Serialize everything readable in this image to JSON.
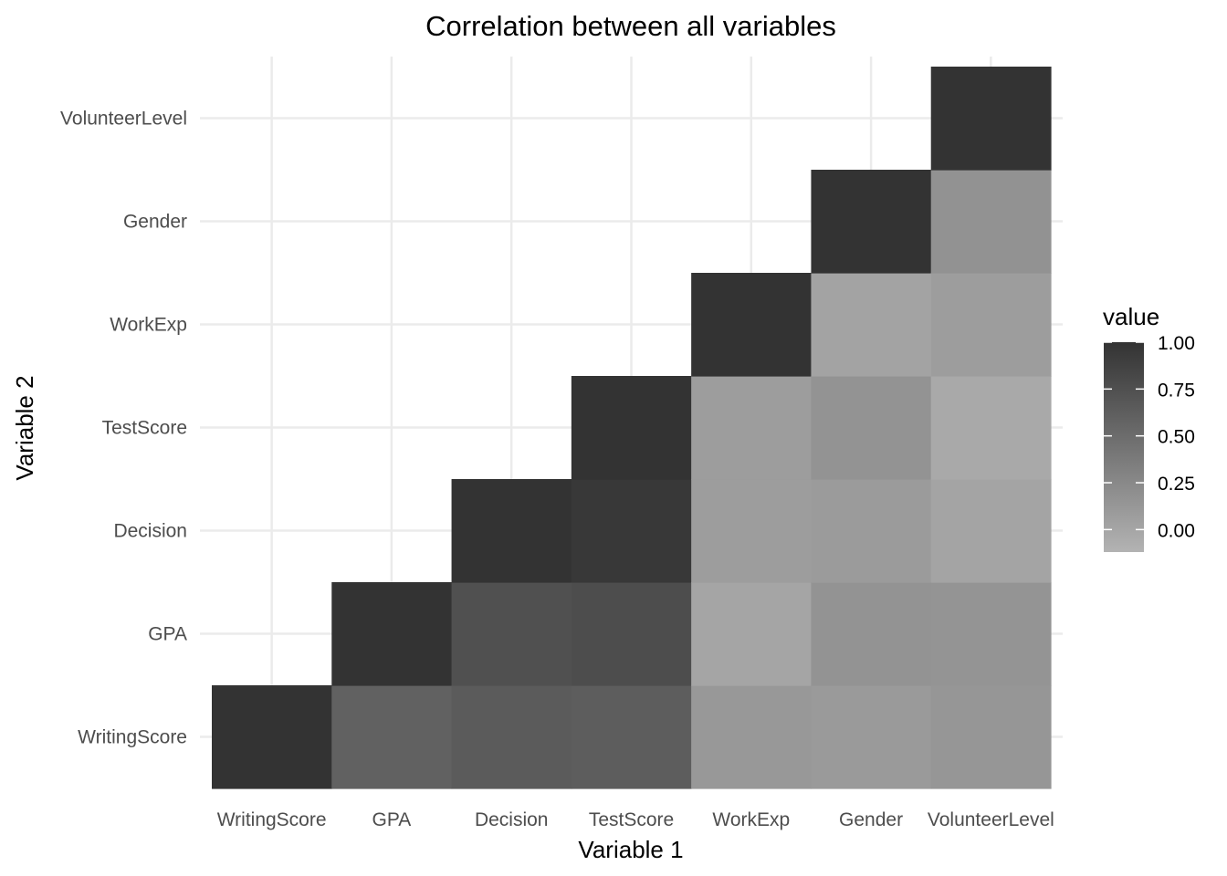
{
  "chart_data": {
    "type": "heatmap",
    "title": "Correlation between all variables",
    "xlabel": "Variable 1",
    "ylabel": "Variable 2",
    "x_categories": [
      "WritingScore",
      "GPA",
      "Decision",
      "TestScore",
      "WorkExp",
      "Gender",
      "VolunteerLevel"
    ],
    "y_categories": [
      "WritingScore",
      "GPA",
      "Decision",
      "TestScore",
      "WorkExp",
      "Gender",
      "VolunteerLevel"
    ],
    "cells": [
      {
        "x": "WritingScore",
        "y": "WritingScore",
        "value": 1.0
      },
      {
        "x": "GPA",
        "y": "WritingScore",
        "value": 0.6
      },
      {
        "x": "GPA",
        "y": "GPA",
        "value": 1.0
      },
      {
        "x": "Decision",
        "y": "WritingScore",
        "value": 0.65
      },
      {
        "x": "Decision",
        "y": "GPA",
        "value": 0.75
      },
      {
        "x": "Decision",
        "y": "Decision",
        "value": 1.0
      },
      {
        "x": "TestScore",
        "y": "WritingScore",
        "value": 0.63
      },
      {
        "x": "TestScore",
        "y": "GPA",
        "value": 0.77
      },
      {
        "x": "TestScore",
        "y": "Decision",
        "value": 0.96
      },
      {
        "x": "TestScore",
        "y": "TestScore",
        "value": 1.0
      },
      {
        "x": "WorkExp",
        "y": "WritingScore",
        "value": 0.12
      },
      {
        "x": "WorkExp",
        "y": "GPA",
        "value": 0.0
      },
      {
        "x": "WorkExp",
        "y": "Decision",
        "value": 0.07
      },
      {
        "x": "WorkExp",
        "y": "TestScore",
        "value": 0.07
      },
      {
        "x": "WorkExp",
        "y": "WorkExp",
        "value": 1.0
      },
      {
        "x": "Gender",
        "y": "WritingScore",
        "value": 0.1
      },
      {
        "x": "Gender",
        "y": "GPA",
        "value": 0.16
      },
      {
        "x": "Gender",
        "y": "Decision",
        "value": 0.09
      },
      {
        "x": "Gender",
        "y": "TestScore",
        "value": 0.16
      },
      {
        "x": "Gender",
        "y": "WorkExp",
        "value": 0.02
      },
      {
        "x": "Gender",
        "y": "Gender",
        "value": 1.0
      },
      {
        "x": "VolunteerLevel",
        "y": "WritingScore",
        "value": 0.13
      },
      {
        "x": "VolunteerLevel",
        "y": "GPA",
        "value": 0.15
      },
      {
        "x": "VolunteerLevel",
        "y": "Decision",
        "value": 0.01
      },
      {
        "x": "VolunteerLevel",
        "y": "TestScore",
        "value": -0.03
      },
      {
        "x": "VolunteerLevel",
        "y": "WorkExp",
        "value": 0.07
      },
      {
        "x": "VolunteerLevel",
        "y": "Gender",
        "value": 0.17
      },
      {
        "x": "VolunteerLevel",
        "y": "VolunteerLevel",
        "value": 1.0
      }
    ],
    "legend": {
      "title": "value",
      "position": "right",
      "ticks": [
        "1.00",
        "0.75",
        "0.50",
        "0.25",
        "0.00"
      ],
      "tick_values": [
        1.0,
        0.75,
        0.5,
        0.25,
        0.0
      ],
      "range": [
        -0.12,
        1.0
      ],
      "color_low": "#b3b3b3",
      "color_high": "#333333"
    },
    "grid": true
  }
}
